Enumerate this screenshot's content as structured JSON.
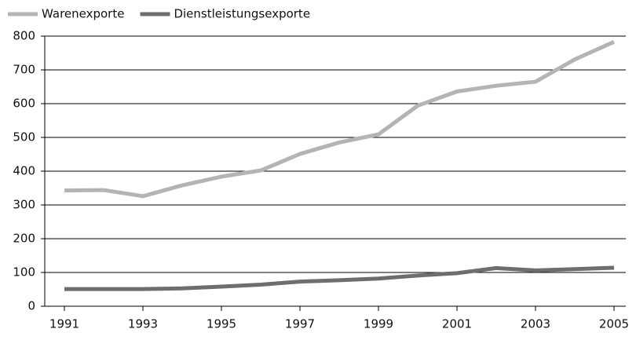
{
  "chart_data": {
    "type": "line",
    "x": [
      1991,
      1992,
      1993,
      1994,
      1995,
      1996,
      1997,
      1998,
      1999,
      2000,
      2001,
      2002,
      2003,
      2004,
      2005
    ],
    "series": [
      {
        "name": "Warenexporte",
        "color": "#b4b4b4",
        "values": [
          343,
          344,
          326,
          358,
          384,
          402,
          451,
          485,
          509,
          594,
          636,
          653,
          665,
          731,
          783
        ]
      },
      {
        "name": "Dienstleistungsexporte",
        "color": "#6e6e6e",
        "values": [
          51,
          51,
          51,
          53,
          58,
          64,
          73,
          77,
          82,
          91,
          98,
          113,
          106,
          110,
          114
        ]
      }
    ],
    "xlim": [
      1990.5,
      2005.3
    ],
    "xticks": [
      1991,
      1993,
      1995,
      1997,
      1999,
      2001,
      2003,
      2005
    ],
    "ylim": [
      0,
      800
    ],
    "yticks": [
      0,
      100,
      200,
      300,
      400,
      500,
      600,
      700,
      800
    ],
    "grid": true,
    "legend": "top-left"
  }
}
